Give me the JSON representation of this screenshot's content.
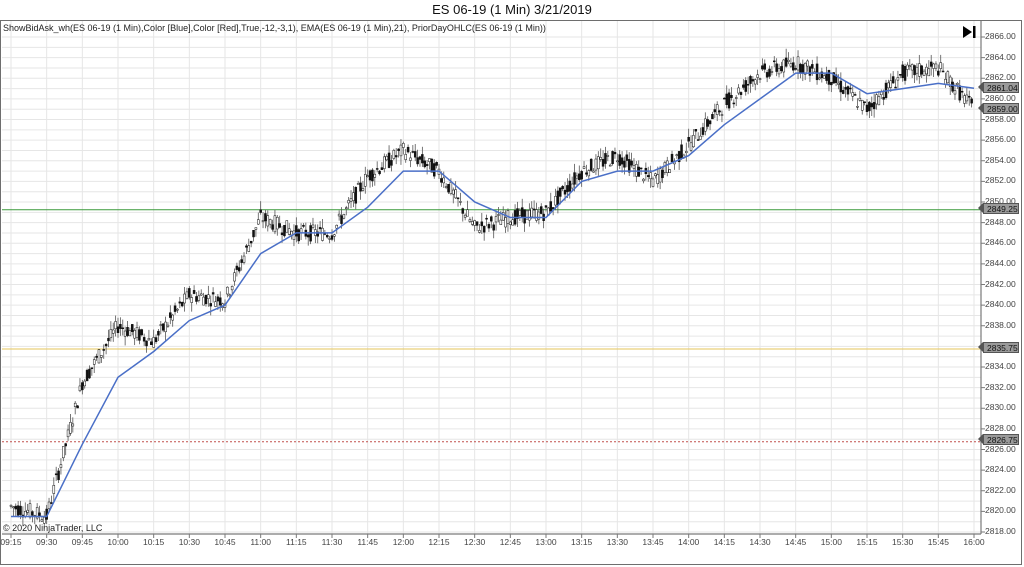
{
  "window": {
    "title": "ES 06-19 (1 Min)  3/21/2019"
  },
  "indicators_label": "ShowBidAsk_wh(ES 06-19 (1 Min),Color [Blue],Color [Red],True,-12,-3,1),  EMA(ES 06-19 (1 Min),21),  PriorDayOHLC(ES 06-19 (1 Min))",
  "copyright": "© 2020 NinjaTrader, LLC",
  "toolbar": {
    "goto_end_icon": "skip-to-end-icon"
  },
  "colors": {
    "ema": "#4a6fc7",
    "prior_high": "#3a9a3a",
    "prior_mid": "#e6c65a",
    "prior_low": "#c0504d",
    "bars": "#111111",
    "grid": "#e6e6e6",
    "axis": "#7a7a7a",
    "tag_bg": "#9a9a9a"
  },
  "price_tags": {
    "ema": "2861.04",
    "last": "2859.00",
    "prior_high": "2849.25",
    "prior_mid": "2835.75",
    "prior_low": "2826.75"
  },
  "y_axis": {
    "ticks": [
      "2866.00",
      "2864.00",
      "2862.00",
      "2860.00",
      "2858.00",
      "2856.00",
      "2854.00",
      "2852.00",
      "2850.00",
      "2848.00",
      "2846.00",
      "2844.00",
      "2842.00",
      "2840.00",
      "2838.00",
      "2836.00",
      "2834.00",
      "2832.00",
      "2830.00",
      "2828.00",
      "2826.00",
      "2824.00",
      "2822.00",
      "2820.00",
      "2818.00"
    ]
  },
  "x_axis": {
    "ticks": [
      "09:15",
      "09:30",
      "09:45",
      "10:00",
      "10:15",
      "10:30",
      "10:45",
      "11:00",
      "11:15",
      "11:30",
      "11:45",
      "12:00",
      "12:15",
      "12:30",
      "12:45",
      "13:00",
      "13:15",
      "13:30",
      "13:45",
      "14:00",
      "14:15",
      "14:30",
      "14:45",
      "15:00",
      "15:15",
      "15:30",
      "15:45",
      "16:00"
    ]
  },
  "chart_data": {
    "type": "line",
    "title": "ES 06-19 (1 Min)  3/21/2019",
    "xlabel": "",
    "ylabel": "",
    "ylim": [
      2818,
      2866.5
    ],
    "grid": true,
    "legend": "none",
    "x": [
      "09:15",
      "09:30",
      "09:45",
      "10:00",
      "10:15",
      "10:30",
      "10:45",
      "11:00",
      "11:15",
      "11:30",
      "11:45",
      "12:00",
      "12:15",
      "12:30",
      "12:45",
      "13:00",
      "13:15",
      "13:30",
      "13:45",
      "14:00",
      "14:15",
      "14:30",
      "14:45",
      "15:00",
      "15:15",
      "15:30",
      "15:45",
      "16:00"
    ],
    "series": [
      {
        "name": "ES 06-19 close (approx, OHLC bars)",
        "values": [
          2820.5,
          2819.5,
          2832.5,
          2838.0,
          2836.5,
          2841.0,
          2840.5,
          2848.5,
          2847.0,
          2847.0,
          2852.5,
          2855.0,
          2853.0,
          2847.5,
          2848.5,
          2849.0,
          2853.0,
          2854.5,
          2852.0,
          2855.5,
          2859.5,
          2862.5,
          2863.5,
          2862.0,
          2859.0,
          2862.5,
          2863.0,
          2859.0
        ]
      },
      {
        "name": "EMA(21)",
        "values": [
          2819.5,
          2819.5,
          2826.5,
          2833.0,
          2835.5,
          2838.5,
          2840.0,
          2845.0,
          2847.0,
          2847.0,
          2849.5,
          2853.0,
          2853.0,
          2850.0,
          2848.5,
          2848.5,
          2852.0,
          2853.0,
          2853.0,
          2854.5,
          2857.5,
          2860.0,
          2862.5,
          2862.5,
          2860.5,
          2861.0,
          2861.5,
          2861.04
        ]
      }
    ],
    "horizontal_lines": [
      {
        "name": "Prior Day High",
        "value": 2849.25,
        "color": "#3a9a3a",
        "style": "solid"
      },
      {
        "name": "Prior Day Close/Mid",
        "value": 2835.75,
        "color": "#e6c65a",
        "style": "solid"
      },
      {
        "name": "Prior Day Low",
        "value": 2826.75,
        "color": "#c0504d",
        "style": "dotted"
      }
    ],
    "annotations": [
      "Last price 2859.00",
      "EMA 2861.04"
    ]
  }
}
